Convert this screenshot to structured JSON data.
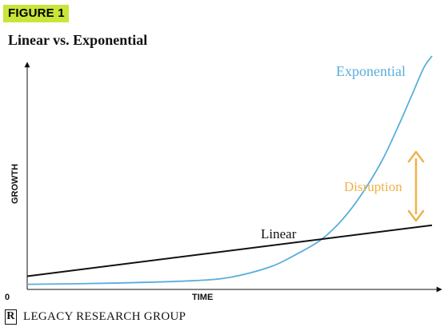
{
  "figure_label": "FIGURE 1",
  "footer": {
    "logo": "R",
    "text": "LEGACY RESEARCH GROUP"
  },
  "chart_data": {
    "type": "line",
    "title": "Linear vs. Exponential",
    "xlabel": "TIME",
    "ylabel": "GROWTH",
    "origin_label": "0",
    "grid": false,
    "ticks": false,
    "xlim": [
      0,
      100
    ],
    "ylim": [
      0,
      100
    ],
    "series": [
      {
        "name": "Exponential",
        "color": "#5aaedb",
        "x": [
          0,
          20,
          40,
          50,
          60,
          66,
          72,
          76,
          80,
          84,
          88,
          92,
          95,
          98,
          100
        ],
        "y": [
          1.5,
          2,
          3,
          4.5,
          9,
          14,
          20,
          26,
          34,
          44,
          56,
          71,
          83,
          95,
          100
        ]
      },
      {
        "name": "Linear",
        "color": "#111111",
        "x": [
          0,
          100
        ],
        "y": [
          5,
          27
        ]
      }
    ],
    "annotation": {
      "text": "Disruption",
      "color": "#f0b24a",
      "x": 92,
      "y_from": 30,
      "y_to": 57
    }
  }
}
